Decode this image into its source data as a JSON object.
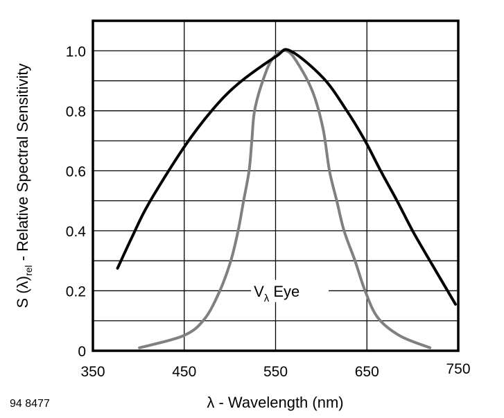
{
  "chart_data": {
    "type": "line",
    "xlabel": "λ - Wavelength (nm)",
    "ylabel_main": "S (λ)",
    "ylabel_sub": "rel",
    "ylabel_rest": " - Relative Spectral Sensitivity",
    "xlim": [
      350,
      750
    ],
    "ylim": [
      0,
      1.1
    ],
    "grid": true,
    "x_ticks": [
      "350",
      "450",
      "550",
      "650",
      "750"
    ],
    "x_tick_values": [
      350,
      450,
      550,
      650,
      750
    ],
    "y_ticks": [
      "0",
      "0.2",
      "0.4",
      "0.6",
      "0.8",
      "1.0"
    ],
    "y_tick_values": [
      0,
      0.2,
      0.4,
      0.6,
      0.8,
      1.0
    ],
    "y_grid_step": 0.1,
    "figure_code": "94 8477",
    "annotation": {
      "main": "V",
      "sub": "λ",
      "rest": " Eye",
      "x": 555,
      "y": 0.19
    },
    "series": [
      {
        "color": "#000000",
        "x": [
          377,
          393,
          411,
          449,
          480,
          509,
          550,
          566,
          602,
          628,
          648,
          665,
          683,
          700,
          718,
          747
        ],
        "y": [
          0.275,
          0.38,
          0.49,
          0.675,
          0.8,
          0.89,
          0.98,
          1.0,
          0.91,
          0.8,
          0.7,
          0.6,
          0.5,
          0.4,
          0.305,
          0.155
        ]
      },
      {
        "name": "Vλ Eye",
        "color": "#808080",
        "x": [
          401,
          449,
          472,
          489,
          501,
          509,
          515,
          521,
          524,
          527,
          536,
          547,
          562,
          576,
          591,
          602,
          609,
          617,
          625,
          637,
          648,
          662,
          686,
          719
        ],
        "y": [
          0.01,
          0.05,
          0.105,
          0.2,
          0.3,
          0.4,
          0.5,
          0.6,
          0.7,
          0.8,
          0.9,
          0.975,
          1.0,
          0.95,
          0.86,
          0.74,
          0.6,
          0.5,
          0.4,
          0.3,
          0.2,
          0.11,
          0.05,
          0.01
        ]
      }
    ]
  }
}
